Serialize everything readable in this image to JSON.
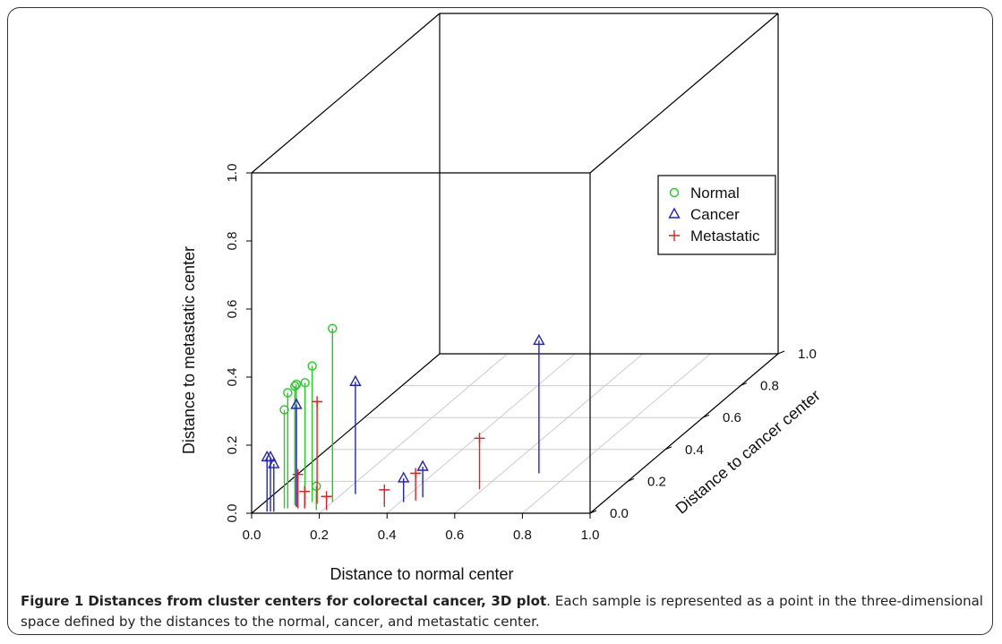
{
  "chart_data": {
    "type": "scatter3d",
    "xlabel": "Distance to normal center",
    "ylabel": "Distance to cancer center",
    "zlabel": "Distance to metastatic center",
    "xlim": [
      0,
      1
    ],
    "ylim": [
      0,
      1
    ],
    "zlim": [
      0,
      1
    ],
    "x_ticks": [
      "0.0",
      "0.2",
      "0.4",
      "0.6",
      "0.8",
      "1.0"
    ],
    "y_ticks": [
      "0.0",
      "0.2",
      "0.4",
      "0.6",
      "0.8",
      "1.0"
    ],
    "z_ticks": [
      "0.0",
      "0.2",
      "0.4",
      "0.6",
      "0.8",
      "1.0"
    ],
    "legend_position": "top-right",
    "grid": true,
    "colors": {
      "normal": "#22cc22",
      "cancer": "#2222cc",
      "metastatic": "#dd2222"
    },
    "series": [
      {
        "name": "Normal",
        "marker": "circle",
        "points": [
          {
            "x": 0.08,
            "y": 0.03,
            "z": 0.29
          },
          {
            "x": 0.09,
            "y": 0.03,
            "z": 0.34
          },
          {
            "x": 0.1,
            "y": 0.05,
            "z": 0.35
          },
          {
            "x": 0.11,
            "y": 0.04,
            "z": 0.36
          },
          {
            "x": 0.13,
            "y": 0.05,
            "z": 0.36
          },
          {
            "x": 0.14,
            "y": 0.07,
            "z": 0.4
          },
          {
            "x": 0.2,
            "y": 0.07,
            "z": 0.51
          },
          {
            "x": 0.18,
            "y": 0.02,
            "z": 0.07
          }
        ]
      },
      {
        "name": "Cancer",
        "marker": "triangle",
        "points": [
          {
            "x": 0.04,
            "y": 0.01,
            "z": 0.16
          },
          {
            "x": 0.05,
            "y": 0.01,
            "z": 0.16
          },
          {
            "x": 0.06,
            "y": 0.01,
            "z": 0.14
          },
          {
            "x": 0.11,
            "y": 0.04,
            "z": 0.3
          },
          {
            "x": 0.24,
            "y": 0.12,
            "z": 0.33
          },
          {
            "x": 0.41,
            "y": 0.07,
            "z": 0.07
          },
          {
            "x": 0.45,
            "y": 0.1,
            "z": 0.09
          },
          {
            "x": 0.71,
            "y": 0.25,
            "z": 0.39
          }
        ]
      },
      {
        "name": "Metastatic",
        "marker": "plus",
        "points": [
          {
            "x": 0.12,
            "y": 0.03,
            "z": 0.1
          },
          {
            "x": 0.14,
            "y": 0.03,
            "z": 0.05
          },
          {
            "x": 0.16,
            "y": 0.06,
            "z": 0.3
          },
          {
            "x": 0.21,
            "y": 0.02,
            "z": 0.04
          },
          {
            "x": 0.37,
            "y": 0.04,
            "z": 0.05
          },
          {
            "x": 0.44,
            "y": 0.08,
            "z": 0.08
          },
          {
            "x": 0.59,
            "y": 0.15,
            "z": 0.15
          }
        ]
      }
    ]
  },
  "caption": {
    "figure_label": "Figure 1",
    "title": "Distances from cluster centers for colorectal cancer, 3D plot",
    "body": ". Each sample is represented as a point in the three-dimensional space defined by the distances to the normal, cancer, and metastatic center."
  }
}
